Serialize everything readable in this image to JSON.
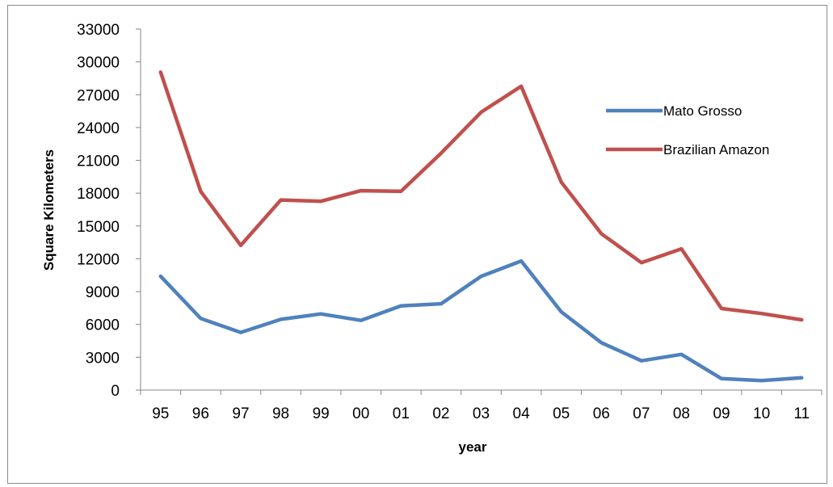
{
  "chart_data": {
    "type": "line",
    "title": "",
    "xlabel": "year",
    "ylabel": "Square Kilometers",
    "categories": [
      "95",
      "96",
      "97",
      "98",
      "99",
      "00",
      "01",
      "02",
      "03",
      "04",
      "05",
      "06",
      "07",
      "08",
      "09",
      "10",
      "11"
    ],
    "ylim": [
      0,
      33000
    ],
    "yticks": [
      0,
      3000,
      6000,
      9000,
      12000,
      15000,
      18000,
      21000,
      24000,
      27000,
      30000,
      33000
    ],
    "ytick_labels": [
      "0",
      "3000",
      "6000",
      "9000",
      "12000",
      "15000",
      "18000",
      "21000",
      "24000",
      "27000",
      "30000",
      "33000"
    ],
    "grid": false,
    "legend_position": "right",
    "series": [
      {
        "name": "Mato Grosso",
        "color": "#4f81bd",
        "values": [
          10400,
          6550,
          5270,
          6470,
          6960,
          6370,
          7700,
          7890,
          10400,
          11800,
          7150,
          4330,
          2680,
          3260,
          1050,
          870,
          1120
        ]
      },
      {
        "name": "Brazilian Amazon",
        "color": "#c0504d",
        "values": [
          29060,
          18160,
          13230,
          17380,
          17260,
          18230,
          18170,
          21650,
          25400,
          27770,
          19010,
          14290,
          11650,
          12910,
          7460,
          7000,
          6420
        ]
      }
    ]
  }
}
